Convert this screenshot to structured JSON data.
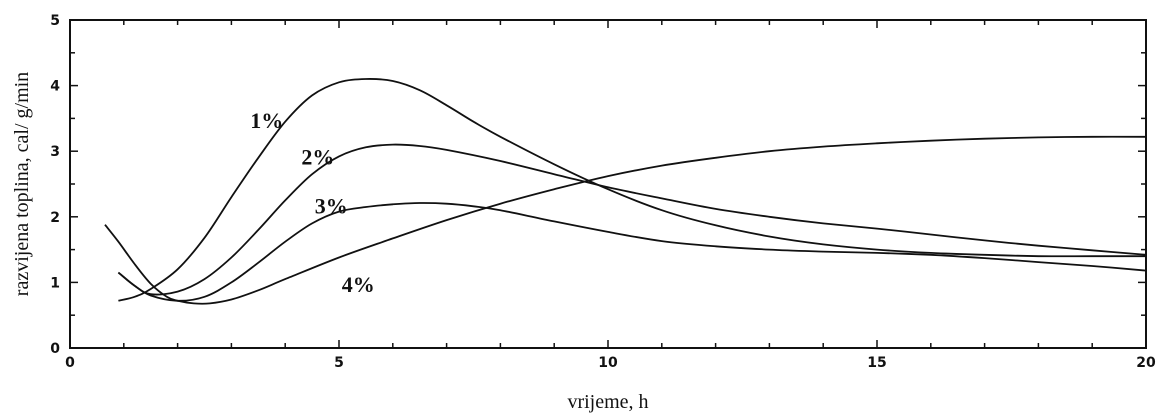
{
  "chart_data": {
    "type": "line",
    "xlabel": "vrijeme, h",
    "ylabel": "razvijena toplina, cal/ g/min",
    "xlim": [
      0,
      20
    ],
    "ylim": [
      0,
      5
    ],
    "xticks": [
      0,
      5,
      10,
      15,
      20
    ],
    "yticks": [
      0,
      1,
      2,
      3,
      4,
      5
    ],
    "grid": false,
    "series": [
      {
        "name": "1%",
        "points": [
          [
            0.9,
            0.72
          ],
          [
            1.2,
            0.78
          ],
          [
            1.5,
            0.9
          ],
          [
            2,
            1.2
          ],
          [
            2.5,
            1.68
          ],
          [
            3,
            2.3
          ],
          [
            3.5,
            2.9
          ],
          [
            4,
            3.45
          ],
          [
            4.5,
            3.85
          ],
          [
            5,
            4.05
          ],
          [
            5.5,
            4.1
          ],
          [
            6,
            4.07
          ],
          [
            6.5,
            3.93
          ],
          [
            7,
            3.7
          ],
          [
            7.5,
            3.45
          ],
          [
            8,
            3.22
          ],
          [
            9,
            2.8
          ],
          [
            10,
            2.42
          ],
          [
            11,
            2.1
          ],
          [
            12,
            1.87
          ],
          [
            13,
            1.7
          ],
          [
            14,
            1.58
          ],
          [
            15,
            1.5
          ],
          [
            16,
            1.45
          ],
          [
            17,
            1.42
          ],
          [
            18,
            1.4
          ],
          [
            19,
            1.4
          ],
          [
            20,
            1.4
          ]
        ]
      },
      {
        "name": "2%",
        "points": [
          [
            0.9,
            1.15
          ],
          [
            1.2,
            0.95
          ],
          [
            1.5,
            0.82
          ],
          [
            2,
            0.86
          ],
          [
            2.5,
            1.05
          ],
          [
            3,
            1.38
          ],
          [
            3.5,
            1.8
          ],
          [
            4,
            2.25
          ],
          [
            4.5,
            2.65
          ],
          [
            5,
            2.92
          ],
          [
            5.5,
            3.06
          ],
          [
            6,
            3.1
          ],
          [
            6.5,
            3.08
          ],
          [
            7,
            3.02
          ],
          [
            8,
            2.85
          ],
          [
            9,
            2.65
          ],
          [
            10,
            2.45
          ],
          [
            11,
            2.28
          ],
          [
            12,
            2.12
          ],
          [
            13,
            2
          ],
          [
            14,
            1.9
          ],
          [
            15,
            1.82
          ],
          [
            16,
            1.73
          ],
          [
            17,
            1.64
          ],
          [
            18,
            1.56
          ],
          [
            19,
            1.49
          ],
          [
            20,
            1.42
          ]
        ]
      },
      {
        "name": "3%",
        "points": [
          [
            0.9,
            1.15
          ],
          [
            1.2,
            0.95
          ],
          [
            1.5,
            0.8
          ],
          [
            2,
            0.72
          ],
          [
            2.5,
            0.78
          ],
          [
            3,
            1.0
          ],
          [
            3.5,
            1.3
          ],
          [
            4,
            1.62
          ],
          [
            4.5,
            1.9
          ],
          [
            5,
            2.08
          ],
          [
            5.5,
            2.15
          ],
          [
            6,
            2.19
          ],
          [
            6.5,
            2.21
          ],
          [
            7,
            2.2
          ],
          [
            7.5,
            2.16
          ],
          [
            8,
            2.1
          ],
          [
            9,
            1.93
          ],
          [
            10,
            1.77
          ],
          [
            11,
            1.63
          ],
          [
            12,
            1.55
          ],
          [
            13,
            1.5
          ],
          [
            14,
            1.47
          ],
          [
            15,
            1.45
          ],
          [
            16,
            1.42
          ],
          [
            17,
            1.37
          ],
          [
            18,
            1.31
          ],
          [
            19,
            1.25
          ],
          [
            20,
            1.18
          ]
        ]
      },
      {
        "name": "4%",
        "points": [
          [
            0.65,
            1.88
          ],
          [
            0.9,
            1.62
          ],
          [
            1.2,
            1.28
          ],
          [
            1.5,
            0.98
          ],
          [
            1.8,
            0.78
          ],
          [
            2,
            0.72
          ],
          [
            2.3,
            0.68
          ],
          [
            2.6,
            0.68
          ],
          [
            3,
            0.74
          ],
          [
            3.5,
            0.88
          ],
          [
            4,
            1.05
          ],
          [
            5,
            1.38
          ],
          [
            6,
            1.67
          ],
          [
            7,
            1.95
          ],
          [
            8,
            2.2
          ],
          [
            9,
            2.42
          ],
          [
            10,
            2.62
          ],
          [
            11,
            2.78
          ],
          [
            12,
            2.9
          ],
          [
            13,
            3.0
          ],
          [
            14,
            3.07
          ],
          [
            15,
            3.12
          ],
          [
            16,
            3.16
          ],
          [
            17,
            3.19
          ],
          [
            18,
            3.21
          ],
          [
            19,
            3.22
          ],
          [
            20,
            3.22
          ]
        ]
      }
    ],
    "annotations": [
      {
        "text": "1%",
        "x": 3.35,
        "y": 3.35
      },
      {
        "text": "2%",
        "x": 4.3,
        "y": 2.8
      },
      {
        "text": "3%",
        "x": 4.55,
        "y": 2.05
      },
      {
        "text": "4%",
        "x": 5.05,
        "y": 0.85
      }
    ]
  }
}
